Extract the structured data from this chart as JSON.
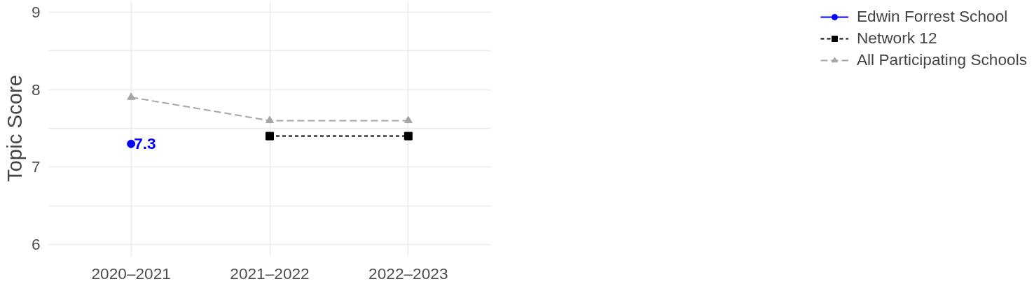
{
  "chart_data": {
    "type": "line",
    "ylabel": "Topic Score",
    "categories": [
      "2020–2021",
      "2021–2022",
      "2022–2023"
    ],
    "series": [
      {
        "name": "Edwin Forrest School",
        "color": "#0000ff",
        "values": [
          7.3,
          null,
          null
        ],
        "marker": "circle",
        "line_style": "solid",
        "value_labels": [
          "7.3",
          null,
          null
        ]
      },
      {
        "name": "Network 12",
        "color": "#000000",
        "values": [
          null,
          7.4,
          7.4
        ],
        "marker": "square",
        "line_style": "dotted"
      },
      {
        "name": "All Participating Schools",
        "color": "#a6a6a6",
        "values": [
          7.9,
          7.6,
          7.6
        ],
        "marker": "triangle",
        "line_style": "dashed"
      }
    ],
    "ylim": [
      5.85,
      9.15
    ],
    "yticks": [
      6,
      {
        "value": 6.5,
        "label": null
      },
      7,
      {
        "value": 7.5,
        "label": null
      },
      8,
      {
        "value": 8.5,
        "label": null
      },
      9
    ],
    "grid": true,
    "legend": "right"
  }
}
